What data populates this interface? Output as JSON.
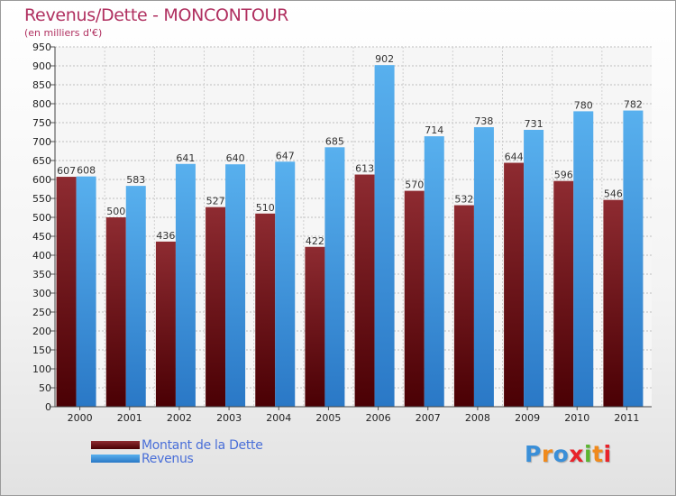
{
  "chart_data": {
    "type": "bar",
    "title": "Revenus/Dette - MONCONTOUR",
    "subtitle": "(en milliers d'€)",
    "categories": [
      "2000",
      "2001",
      "2002",
      "2003",
      "2004",
      "2005",
      "2006",
      "2007",
      "2008",
      "2009",
      "2010",
      "2011"
    ],
    "series": [
      {
        "name": "Montant de la Dette",
        "color": "#7a1f24",
        "values": [
          607,
          500,
          436,
          527,
          510,
          422,
          613,
          570,
          532,
          644,
          596,
          546
        ]
      },
      {
        "name": "Revenus",
        "color": "#4aa3e6",
        "values": [
          608,
          583,
          641,
          640,
          647,
          685,
          902,
          714,
          738,
          731,
          780,
          782
        ]
      }
    ],
    "ylim": [
      0,
      950
    ],
    "yticks": [
      0,
      50,
      100,
      150,
      200,
      250,
      300,
      350,
      400,
      450,
      500,
      550,
      600,
      650,
      700,
      750,
      800,
      850,
      900,
      950
    ],
    "grid": true,
    "legend_position": "bottom-left"
  },
  "logo": {
    "letters": [
      {
        "ch": "P",
        "color": "#3a8fd8"
      },
      {
        "ch": "r",
        "color": "#f08a1c"
      },
      {
        "ch": "o",
        "color": "#3a8fd8"
      },
      {
        "ch": "x",
        "color": "#e8232a"
      },
      {
        "ch": "i",
        "color": "#5cb531"
      },
      {
        "ch": "t",
        "color": "#f08a1c"
      },
      {
        "ch": "i",
        "color": "#e8232a"
      }
    ]
  }
}
